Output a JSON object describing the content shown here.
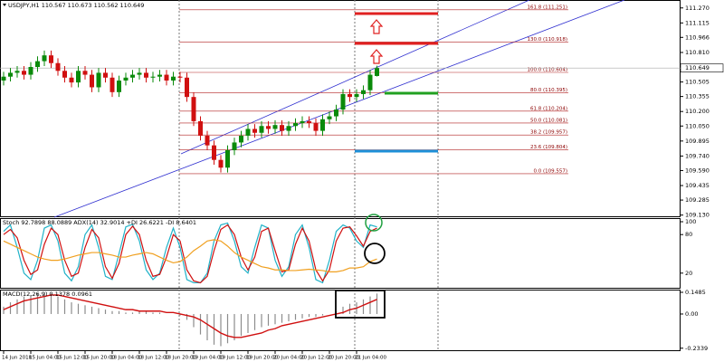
{
  "chart_data": [
    {
      "type": "candlestick",
      "title": "USDJPY,H1 110.567 110.673 110.562 110.649",
      "categories": [
        "14 Jun 2018",
        null,
        null,
        null,
        "15 Jun 04:00",
        null,
        null,
        null,
        "15 Jun 12:00",
        null,
        null,
        null,
        "15 Jun 20:00",
        null,
        null,
        null,
        "18 Jun 04:00",
        null,
        null,
        null,
        "18 Jun 12:00",
        null,
        null,
        null,
        "18 Jun 20:00",
        null,
        null,
        null,
        "19 Jun 04:00",
        null,
        null,
        null,
        "19 Jun 12:00",
        null,
        null,
        null,
        "19 Jun 20:00",
        null,
        null,
        null,
        "20 Jun 04:00",
        null,
        null,
        null,
        "20 Jun 12:00",
        null,
        null,
        null,
        "20 Jun 20:00",
        null,
        null,
        null,
        "21 Jun 04:00",
        null,
        null,
        null
      ],
      "open": [
        110.52,
        110.56,
        110.6,
        110.62,
        110.58,
        110.66,
        110.72,
        110.78,
        110.7,
        110.62,
        110.55,
        110.5,
        110.62,
        110.58,
        110.45,
        110.6,
        110.55,
        110.4,
        110.52,
        110.55,
        110.58,
        110.6,
        110.55,
        110.56,
        110.58,
        110.52,
        110.56,
        110.55,
        110.35,
        110.1,
        109.95,
        109.85,
        109.7,
        109.62,
        109.8,
        109.88,
        109.95,
        110.02,
        109.98,
        110.05,
        110.02,
        110.06,
        110.0,
        110.05,
        110.08,
        110.1,
        110.08,
        110.0,
        110.12,
        110.15,
        110.22,
        110.38,
        110.35,
        110.38,
        110.42,
        110.567
      ],
      "high": [
        110.61,
        110.65,
        110.67,
        110.67,
        110.71,
        110.77,
        110.83,
        110.83,
        110.75,
        110.67,
        110.6,
        110.67,
        110.67,
        110.63,
        110.65,
        110.65,
        110.6,
        110.57,
        110.6,
        110.63,
        110.65,
        110.65,
        110.61,
        110.63,
        110.63,
        110.61,
        110.61,
        110.6,
        110.4,
        110.15,
        110.0,
        109.9,
        109.75,
        109.85,
        109.93,
        110.0,
        110.07,
        110.07,
        110.1,
        110.1,
        110.11,
        110.11,
        110.1,
        110.13,
        110.15,
        110.15,
        110.13,
        110.17,
        110.2,
        110.27,
        110.43,
        110.43,
        110.43,
        110.47,
        110.63,
        110.673
      ],
      "low": [
        110.47,
        110.51,
        110.55,
        110.53,
        110.53,
        110.61,
        110.67,
        110.65,
        110.57,
        110.5,
        110.45,
        110.45,
        110.53,
        110.4,
        110.4,
        110.5,
        110.35,
        110.35,
        110.47,
        110.5,
        110.53,
        110.5,
        110.5,
        110.51,
        110.47,
        110.47,
        110.5,
        110.3,
        110.05,
        109.9,
        109.8,
        109.65,
        109.57,
        109.57,
        109.75,
        109.83,
        109.9,
        109.93,
        109.93,
        109.97,
        109.97,
        109.95,
        109.95,
        110.0,
        110.03,
        110.03,
        109.95,
        109.95,
        110.07,
        110.1,
        110.17,
        110.3,
        110.3,
        110.33,
        110.37,
        110.562
      ],
      "close": [
        110.56,
        110.6,
        110.62,
        110.58,
        110.66,
        110.72,
        110.78,
        110.7,
        110.62,
        110.55,
        110.5,
        110.62,
        110.58,
        110.45,
        110.6,
        110.55,
        110.4,
        110.52,
        110.55,
        110.58,
        110.6,
        110.55,
        110.56,
        110.58,
        110.52,
        110.56,
        110.55,
        110.35,
        110.1,
        109.95,
        109.85,
        109.7,
        109.62,
        109.8,
        109.88,
        109.95,
        110.02,
        109.98,
        110.05,
        110.02,
        110.06,
        110.0,
        110.05,
        110.08,
        110.1,
        110.08,
        110.0,
        110.12,
        110.15,
        110.22,
        110.38,
        110.35,
        110.38,
        110.42,
        110.58,
        110.649
      ],
      "up_color": "#0a8a0a",
      "down_color": "#d01010",
      "ylim": [
        109.108,
        111.352
      ],
      "yticks": [
        {
          "value": 109.13,
          "label": "109.130"
        },
        109.285,
        109.435,
        {
          "value": 109.59,
          "label": "109.590"
        },
        {
          "value": 109.74,
          "label": "109.740"
        },
        109.895,
        {
          "value": 110.05,
          "label": "110.050"
        },
        {
          "value": 110.2,
          "label": "110.200"
        },
        110.355,
        110.505,
        {
          "value": 110.81,
          "label": "110.810"
        },
        110.966,
        111.115,
        {
          "value": 111.27,
          "label": "111.270"
        }
      ],
      "last_price": 110.649,
      "fib_color": "#b22222",
      "fib_levels": [
        {
          "label": "161.8 (111.251)",
          "value": 111.251
        },
        {
          "label": "130.0 (110.918)",
          "value": 110.918
        },
        {
          "label": "100.0 (110.604)",
          "value": 110.604
        },
        {
          "label": "80.0 (110.395)",
          "value": 110.395
        },
        {
          "label": "61.8 (110.204)",
          "value": 110.204
        },
        {
          "label": "50.0 (110.081)",
          "value": 110.081
        },
        {
          "label": "38.2 (109.957)",
          "value": 109.957
        },
        {
          "label": "23.6 (109.804)",
          "value": 109.804
        },
        {
          "label": "0.0 (109.557)",
          "value": 109.557
        }
      ]
    },
    {
      "type": "line",
      "title": "Stoch 92.7898 88.0889 ADX(14) 32.9014 +DI 26.6221 -DI 8.6401",
      "ylim": [
        0,
        100
      ],
      "yticks": [
        20,
        80,
        100
      ],
      "series": [
        {
          "color": "#20b2c8",
          "values": [
            85,
            95,
            60,
            20,
            10,
            40,
            90,
            95,
            70,
            20,
            8,
            30,
            80,
            95,
            60,
            15,
            10,
            50,
            92,
            96,
            70,
            25,
            10,
            20,
            60,
            90,
            60,
            10,
            5,
            5,
            20,
            70,
            95,
            98,
            70,
            30,
            20,
            60,
            95,
            90,
            40,
            15,
            30,
            80,
            95,
            60,
            10,
            5,
            40,
            85,
            95,
            90,
            70,
            60,
            95,
            92
          ]
        },
        {
          "color": "#d01010",
          "values": [
            80,
            88,
            75,
            40,
            18,
            25,
            65,
            90,
            80,
            40,
            15,
            20,
            60,
            88,
            75,
            30,
            12,
            35,
            80,
            93,
            80,
            40,
            15,
            18,
            45,
            80,
            70,
            25,
            8,
            5,
            15,
            55,
            88,
            95,
            80,
            45,
            25,
            45,
            85,
            90,
            55,
            22,
            25,
            65,
            90,
            70,
            25,
            8,
            25,
            70,
            90,
            92,
            78,
            62,
            85,
            90
          ]
        },
        {
          "color": "#f0a020",
          "values": [
            70,
            65,
            60,
            55,
            50,
            45,
            42,
            40,
            40,
            42,
            45,
            48,
            50,
            52,
            52,
            50,
            48,
            45,
            45,
            48,
            50,
            52,
            50,
            45,
            40,
            36,
            38,
            45,
            55,
            62,
            70,
            72,
            70,
            62,
            52,
            45,
            40,
            35,
            30,
            28,
            25,
            25,
            24,
            24,
            25,
            26,
            25,
            24,
            22,
            22,
            24,
            28,
            28,
            30,
            38,
            42
          ]
        }
      ]
    },
    {
      "type": "macd",
      "title": "MACD(12,26,9) 0.1378 0.0961",
      "ylim": [
        -0.254,
        0.167
      ],
      "yticks": [
        0.1485,
        {
          "value": 0,
          "label": "0.00"
        },
        -0.2339
      ],
      "histogram": {
        "color": "#8c8c8c",
        "values": [
          0.05,
          0.08,
          0.1,
          0.12,
          0.13,
          0.14,
          0.15,
          0.14,
          0.12,
          0.1,
          0.08,
          0.07,
          0.06,
          0.05,
          0.04,
          0.03,
          0.02,
          0.02,
          0.01,
          0.01,
          0.02,
          0.02,
          0.01,
          0.01,
          0,
          0,
          -0.01,
          -0.04,
          -0.09,
          -0.14,
          -0.18,
          -0.21,
          -0.22,
          -0.2,
          -0.18,
          -0.15,
          -0.13,
          -0.11,
          -0.09,
          -0.08,
          -0.07,
          -0.06,
          -0.05,
          -0.04,
          -0.03,
          -0.02,
          -0.02,
          -0.01,
          0,
          0.02,
          0.05,
          0.07,
          0.08,
          0.1,
          0.12,
          0.14
        ]
      },
      "signal": {
        "color": "#d01010",
        "values": [
          0.03,
          0.05,
          0.07,
          0.09,
          0.1,
          0.11,
          0.12,
          0.13,
          0.13,
          0.12,
          0.11,
          0.1,
          0.09,
          0.08,
          0.07,
          0.06,
          0.05,
          0.04,
          0.03,
          0.03,
          0.02,
          0.02,
          0.02,
          0.02,
          0.01,
          0.01,
          0,
          -0.01,
          -0.02,
          -0.04,
          -0.07,
          -0.1,
          -0.13,
          -0.15,
          -0.16,
          -0.16,
          -0.15,
          -0.14,
          -0.13,
          -0.11,
          -0.1,
          -0.08,
          -0.07,
          -0.06,
          -0.05,
          -0.04,
          -0.03,
          -0.02,
          -0.01,
          0,
          0.01,
          0.03,
          0.04,
          0.06,
          0.08,
          0.1
        ]
      }
    }
  ]
}
